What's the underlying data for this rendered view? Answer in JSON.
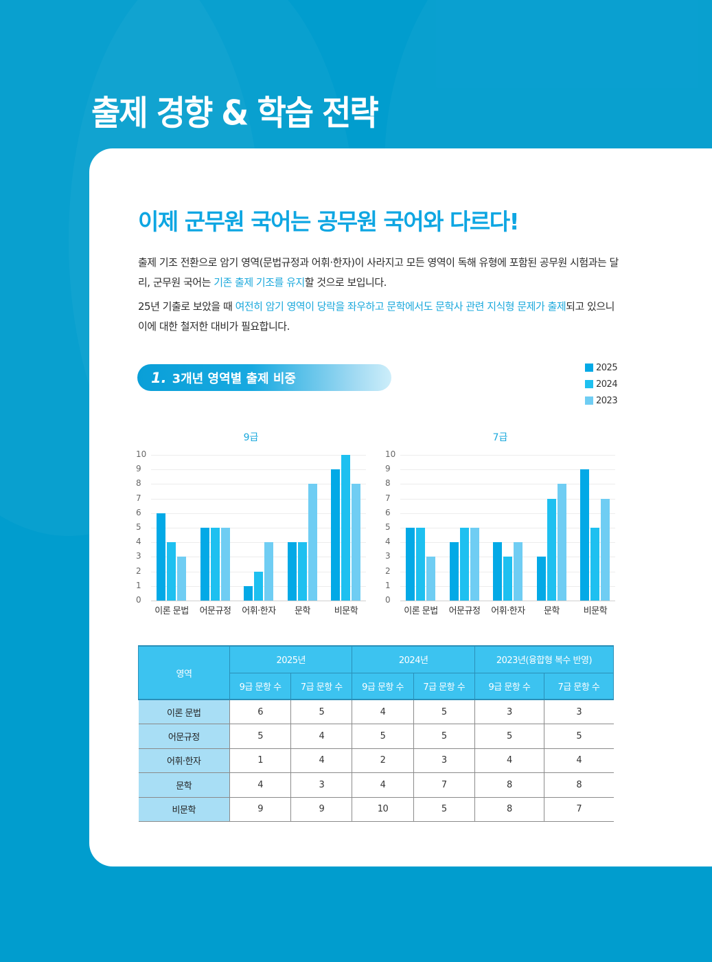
{
  "page": {
    "title": "출제 경향 & 학습 전략",
    "headline": "이제 군무원 국어는 공무원 국어와 다르다!",
    "paragraphs": [
      {
        "parts": [
          {
            "text": "출제 기조 전환으로 암기 영역(문법규정과 어휘·한자)이 사라지고 모든 영역이 독해 유형에 포함된 공무원 시험과는 달리, 군무원 국어는 ",
            "highlight": false
          },
          {
            "text": "기존 출제 기조를 유지",
            "highlight": true
          },
          {
            "text": "할 것으로 보입니다.",
            "highlight": false
          }
        ]
      },
      {
        "parts": [
          {
            "text": "25년 기출로 보았을 때 ",
            "highlight": false
          },
          {
            "text": "여전히 암기 영역이 당락을 좌우하고 문학에서도 문학사 관련 지식형 문제가 출제",
            "highlight": true
          },
          {
            "text": "되고 있으니 이에 대한 철저한 대비가 필요합니다.",
            "highlight": false
          }
        ]
      }
    ],
    "section": {
      "number": "1.",
      "title": "3개년 영역별 출제 비중"
    }
  },
  "colors": {
    "background": "#019dce",
    "accent": "#0ea6e2",
    "y2025": "#03a9e6",
    "y2024": "#1ec0f0",
    "y2023": "#6fcdf3",
    "table_header": "#3cc3f0",
    "table_row_header": "#a8def5"
  },
  "legend": [
    {
      "label": "2025",
      "color": "#03a9e6"
    },
    {
      "label": "2024",
      "color": "#1ec0f0"
    },
    {
      "label": "2023",
      "color": "#6fcdf3"
    }
  ],
  "chart_data": [
    {
      "type": "bar",
      "title": "9급",
      "categories": [
        "이론 문법",
        "어문규정",
        "어휘·한자",
        "문학",
        "비문학"
      ],
      "series": [
        {
          "name": "2025",
          "values": [
            6,
            5,
            1,
            4,
            9
          ]
        },
        {
          "name": "2024",
          "values": [
            4,
            5,
            2,
            4,
            10
          ]
        },
        {
          "name": "2023",
          "values": [
            3,
            5,
            4,
            8,
            8
          ]
        }
      ],
      "xlabel": "",
      "ylabel": "",
      "ylim": [
        0,
        10
      ],
      "yticks": [
        0,
        1,
        2,
        3,
        4,
        5,
        6,
        7,
        8,
        9,
        10
      ],
      "grid": true,
      "legend_position": "top-right"
    },
    {
      "type": "bar",
      "title": "7급",
      "categories": [
        "이론 문법",
        "어문규정",
        "어휘·한자",
        "문학",
        "비문학"
      ],
      "series": [
        {
          "name": "2025",
          "values": [
            5,
            4,
            4,
            3,
            9
          ]
        },
        {
          "name": "2024",
          "values": [
            5,
            5,
            3,
            7,
            5
          ]
        },
        {
          "name": "2023",
          "values": [
            3,
            5,
            4,
            8,
            7
          ]
        }
      ],
      "xlabel": "",
      "ylabel": "",
      "ylim": [
        0,
        10
      ],
      "yticks": [
        0,
        1,
        2,
        3,
        4,
        5,
        6,
        7,
        8,
        9,
        10
      ],
      "grid": true,
      "legend_position": "top-right"
    }
  ],
  "table": {
    "area_header": "영역",
    "year_headers": [
      "2025년",
      "2024년",
      "2023년(융합형 복수 반영)"
    ],
    "sub_headers": [
      "9급 문항 수",
      "7급 문항 수",
      "9급 문항 수",
      "7급 문항 수",
      "9급 문항 수",
      "7급 문항 수"
    ],
    "rows": [
      {
        "area": "이론 문법",
        "values": [
          "6",
          "5",
          "4",
          "5",
          "3",
          "3"
        ]
      },
      {
        "area": "어문규정",
        "values": [
          "5",
          "4",
          "5",
          "5",
          "5",
          "5"
        ]
      },
      {
        "area": "어휘·한자",
        "values": [
          "1",
          "4",
          "2",
          "3",
          "4",
          "4"
        ]
      },
      {
        "area": "문학",
        "values": [
          "4",
          "3",
          "4",
          "7",
          "8",
          "8"
        ]
      },
      {
        "area": "비문학",
        "values": [
          "9",
          "9",
          "10",
          "5",
          "8",
          "7"
        ]
      }
    ]
  }
}
